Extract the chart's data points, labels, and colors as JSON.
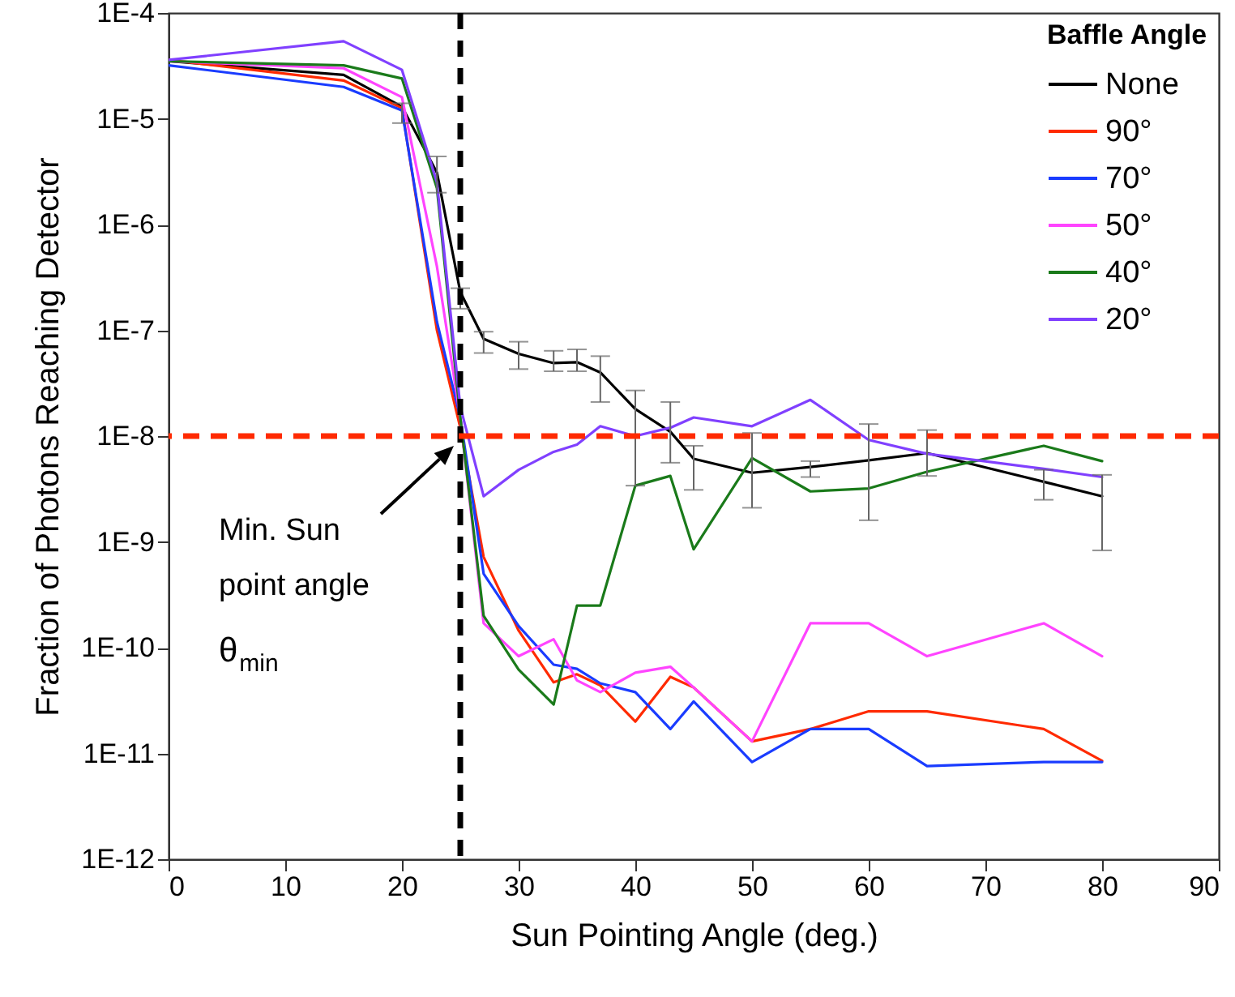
{
  "chart_data": {
    "type": "line",
    "xlabel": "Sun Pointing Angle (deg.)",
    "ylabel": "Fraction of Photons Reaching Detector",
    "legend_title": "Baffle Angle",
    "x": [
      0,
      15,
      20,
      23,
      25,
      27,
      30,
      33,
      35,
      37,
      40,
      43,
      45,
      50,
      55,
      60,
      65,
      75,
      80
    ],
    "series": [
      {
        "name": "None",
        "color": "#000000",
        "values": [
          3.5e-05,
          2.6e-05,
          1.3e-05,
          3.1e-06,
          2.3e-07,
          8.3e-08,
          6e-08,
          4.9e-08,
          5e-08,
          4e-08,
          1.8e-08,
          1.1e-08,
          6.1e-09,
          4.5e-09,
          5.1e-09,
          5.9e-09,
          6.9e-09,
          3.7e-09,
          2.7e-09
        ],
        "errors": [
          null,
          null,
          [
            9.1e-06,
            1.4e-05
          ],
          [
            2e-06,
            4.4e-06
          ],
          [
            1.6e-07,
            2.5e-07
          ],
          [
            6.1e-08,
            9.7e-08
          ],
          [
            4.3e-08,
            7.8e-08
          ],
          [
            4.1e-08,
            6.4e-08
          ],
          [
            4.1e-08,
            6.6e-08
          ],
          [
            2.1e-08,
            5.7e-08
          ],
          [
            3.4e-09,
            2.7e-08
          ],
          [
            5.6e-09,
            2.1e-08
          ],
          [
            3.1e-09,
            8.1e-09
          ],
          [
            2.1e-09,
            1.07e-08
          ],
          [
            4.1e-09,
            5.8e-09
          ],
          [
            1.6e-09,
            1.3e-08
          ],
          [
            4.2e-09,
            1.14e-08
          ],
          [
            2.5e-09,
            4.8e-09
          ],
          [
            8.3e-10,
            4.3e-09
          ]
        ]
      },
      {
        "name": "90°",
        "color": "#ff2a00",
        "values": [
          3.6e-05,
          2.3e-05,
          1.26e-05,
          1e-07,
          1.2e-08,
          7.2e-10,
          1.45e-10,
          4.7e-11,
          5.6e-11,
          4.4e-11,
          2e-11,
          5.3e-11,
          4.2e-11,
          1.3e-11,
          1.7e-11,
          2.5e-11,
          2.5e-11,
          1.7e-11,
          8.5e-12
        ]
      },
      {
        "name": "70°",
        "color": "#1a3cff",
        "values": [
          3.2e-05,
          2e-05,
          1.2e-05,
          1.2e-07,
          1.5e-08,
          5e-10,
          1.6e-10,
          6.9e-11,
          6.3e-11,
          4.6e-11,
          3.8e-11,
          1.7e-11,
          3.1e-11,
          8.3e-12,
          1.7e-11,
          1.7e-11,
          7.6e-12,
          8.3e-12,
          8.3e-12
        ]
      },
      {
        "name": "50°",
        "color": "#ff44ff",
        "values": [
          3.5e-05,
          3e-05,
          1.6e-05,
          4e-07,
          1.5e-08,
          1.7e-10,
          8.3e-11,
          1.2e-10,
          4.9e-11,
          3.8e-11,
          5.8e-11,
          6.6e-11,
          4.2e-11,
          1.3e-11,
          1.7e-10,
          1.7e-10,
          8.3e-11,
          1.7e-10,
          8.3e-11
        ]
      },
      {
        "name": "40°",
        "color": "#1a7a1a",
        "values": [
          3.5e-05,
          3.2e-05,
          2.4e-05,
          2.2e-06,
          1.5e-08,
          2e-10,
          6.2e-11,
          2.9e-11,
          2.5e-10,
          2.5e-10,
          3.4e-09,
          4.2e-09,
          8.5e-10,
          6.2e-09,
          3e-09,
          3.2e-09,
          4.6e-09,
          8.1e-09,
          5.8e-09
        ]
      },
      {
        "name": "20°",
        "color": "#8040ff",
        "values": [
          3.6e-05,
          5.4e-05,
          2.9e-05,
          2.5e-06,
          1.9e-08,
          2.7e-09,
          4.8e-09,
          7.1e-09,
          8.3e-09,
          1.24e-08,
          1e-08,
          1.2e-08,
          1.5e-08,
          1.24e-08,
          2.2e-08,
          9.2e-09,
          6.8e-09,
          4.9e-09,
          4.1e-09
        ]
      }
    ],
    "xlim": [
      0,
      90
    ],
    "xticks": [
      0,
      10,
      20,
      30,
      40,
      50,
      60,
      70,
      80,
      90
    ],
    "ylim": [
      1e-12,
      0.0001
    ],
    "log": true,
    "yticks": [
      {
        "value": 1e-12,
        "label": "1E-12"
      },
      {
        "value": 1e-11,
        "label": "1E-11"
      },
      {
        "value": 1e-10,
        "label": "1E-10"
      },
      {
        "value": 1e-09,
        "label": "1E-9"
      },
      {
        "value": 1e-08,
        "label": "1E-8"
      },
      {
        "value": 1e-07,
        "label": "1E-7"
      },
      {
        "value": 1e-06,
        "label": "1E-6"
      },
      {
        "value": 1e-05,
        "label": "1E-5"
      },
      {
        "value": 0.0001,
        "label": "1E-4"
      }
    ],
    "ref_lines": [
      {
        "axis": "x",
        "value": 25,
        "color": "#000000",
        "line_style": "dashed"
      },
      {
        "axis": "y",
        "value": 1e-08,
        "color": "#ff2a00",
        "line_style": "dashed"
      }
    ],
    "annotations": [
      "Min. Sun point angle θ$_{min}$"
    ],
    "legend": "top right",
    "grid": false,
    "marker": "none",
    "line_style": "solid"
  }
}
